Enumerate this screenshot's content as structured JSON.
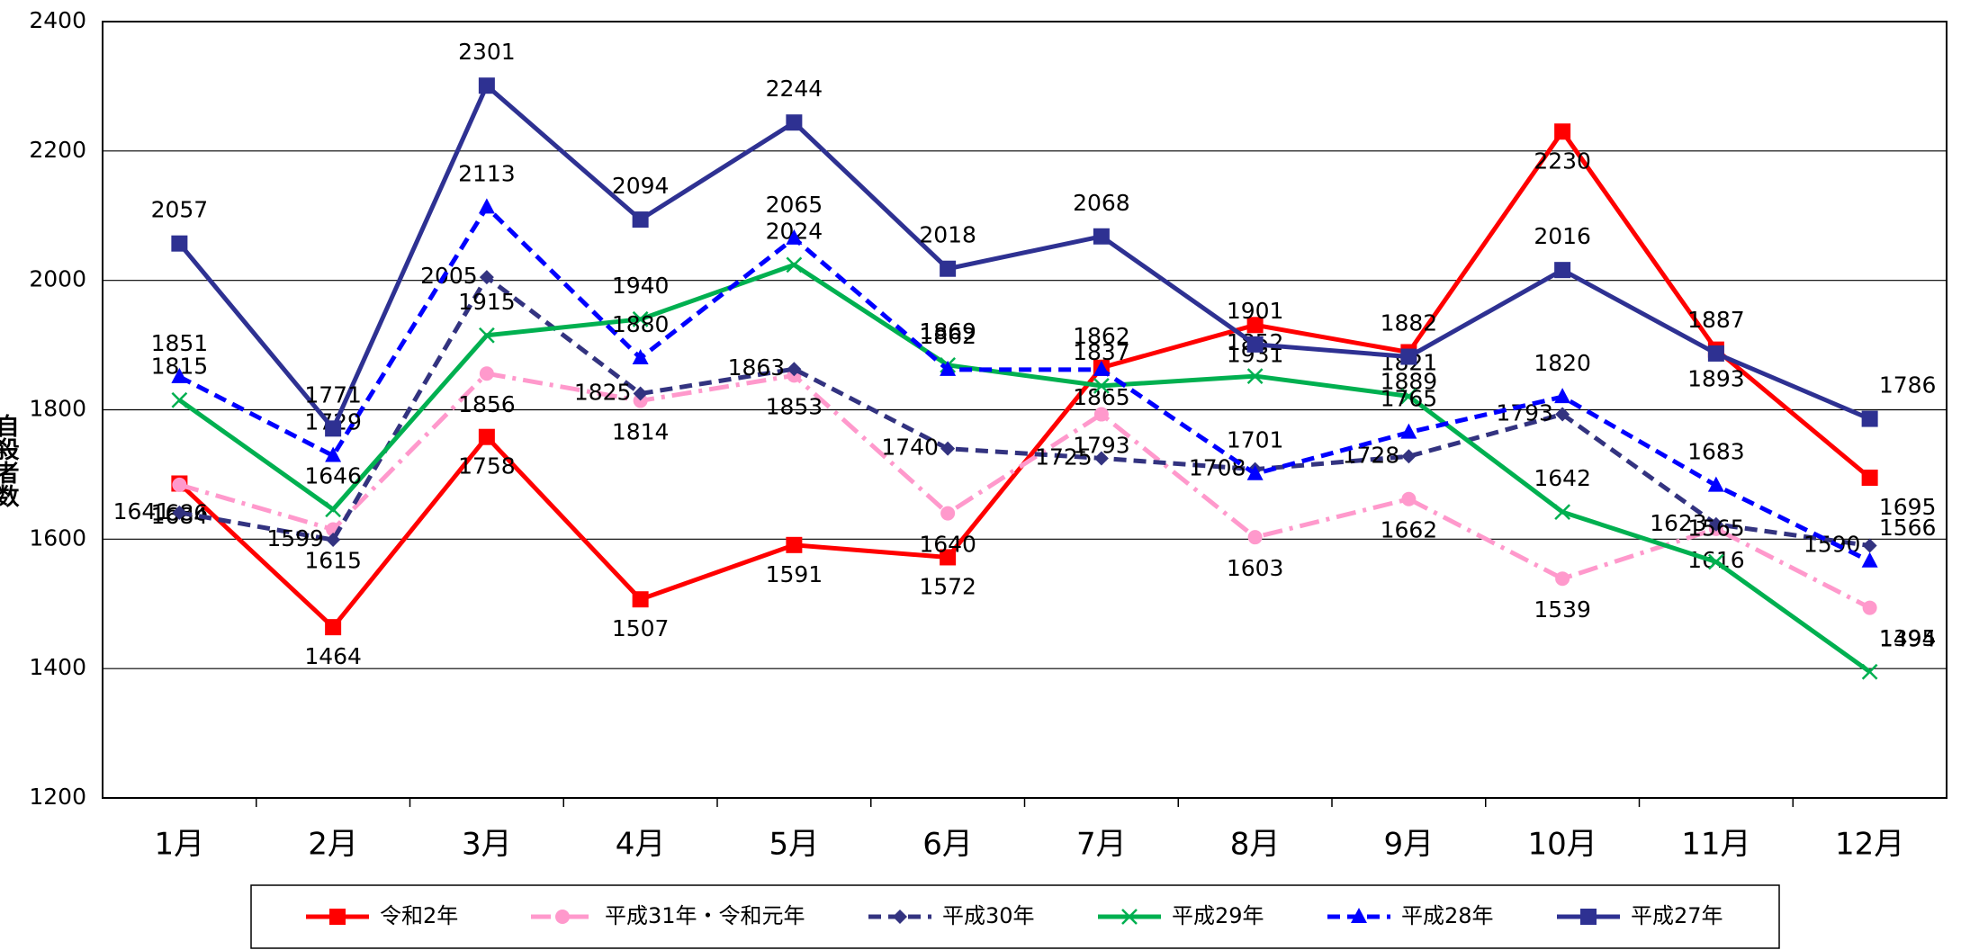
{
  "chart_data": {
    "type": "line",
    "y_label": "自殺者数",
    "categories": [
      "1月",
      "2月",
      "3月",
      "4月",
      "5月",
      "6月",
      "7月",
      "8月",
      "9月",
      "10月",
      "11月",
      "12月"
    ],
    "ylim": [
      1200,
      2400
    ],
    "yticks": [
      1200,
      1400,
      1600,
      1800,
      2000,
      2200,
      2400
    ],
    "grid": true,
    "legend": "bottom",
    "series": [
      {
        "name": "令和2年",
        "color": "#ff0000",
        "marker": "square",
        "dash": "solid",
        "values": [
          1686,
          1464,
          1758,
          1507,
          1591,
          1572,
          1865,
          1931,
          1889,
          2230,
          1893,
          1695
        ]
      },
      {
        "name": "平成31年・令和元年",
        "color": "#ff99cc",
        "marker": "circle",
        "dash": "dashdot",
        "values": [
          1684,
          1615,
          1856,
          1814,
          1853,
          1640,
          1793,
          1603,
          1662,
          1539,
          1616,
          1494
        ]
      },
      {
        "name": "平成30年",
        "color": "#333380",
        "marker": "diamond",
        "dash": "dash",
        "values": [
          1641,
          1599,
          2005,
          1825,
          1863,
          1740,
          1725,
          1708,
          1728,
          1793,
          1623,
          1590
        ]
      },
      {
        "name": "平成29年",
        "color": "#00b050",
        "marker": "x",
        "dash": "solid",
        "values": [
          1815,
          1646,
          1915,
          1940,
          2024,
          1869,
          1837,
          1852,
          1821,
          1642,
          1565,
          1395
        ]
      },
      {
        "name": "平成28年",
        "color": "#0000ff",
        "marker": "triangle",
        "dash": "dash",
        "values": [
          1851,
          1729,
          2113,
          1880,
          2065,
          1862,
          1862,
          1701,
          1765,
          1820,
          1683,
          1566
        ]
      },
      {
        "name": "平成27年",
        "color": "#2e3192",
        "marker": "square",
        "dash": "solid",
        "values": [
          2057,
          1771,
          2301,
          2094,
          2244,
          2018,
          2068,
          1901,
          1882,
          2016,
          1887,
          1786
        ]
      }
    ]
  }
}
